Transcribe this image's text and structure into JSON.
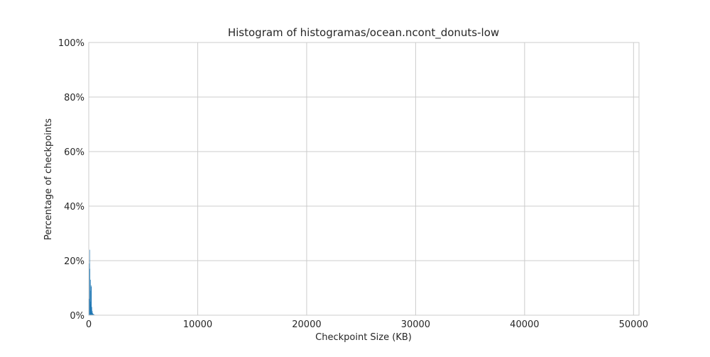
{
  "chart_data": {
    "type": "bar",
    "title": "Histogram of histogramas/ocean.ncont_donuts-low",
    "xlabel": "Checkpoint Size (KB)",
    "ylabel": "Percentage of checkpoints",
    "xlim": [
      0,
      50500
    ],
    "ylim": [
      0,
      100
    ],
    "x_ticks": [
      0,
      10000,
      20000,
      30000,
      40000,
      50000
    ],
    "x_tick_labels": [
      "0",
      "10000",
      "20000",
      "30000",
      "40000",
      "50000"
    ],
    "y_ticks": [
      0,
      20,
      40,
      60,
      80,
      100
    ],
    "y_tick_labels": [
      "0%",
      "20%",
      "40%",
      "60%",
      "80%",
      "100%"
    ],
    "grid": true,
    "bar_color": "#1f77b4",
    "bin_width_kb": 20,
    "bins": [
      {
        "x": 40,
        "value": 6
      },
      {
        "x": 60,
        "value": 19
      },
      {
        "x": 80,
        "value": 24
      },
      {
        "x": 100,
        "value": 17
      },
      {
        "x": 120,
        "value": 9
      },
      {
        "x": 140,
        "value": 5
      },
      {
        "x": 160,
        "value": 13
      },
      {
        "x": 180,
        "value": 4
      },
      {
        "x": 200,
        "value": 11
      },
      {
        "x": 220,
        "value": 3
      },
      {
        "x": 240,
        "value": 10.5
      },
      {
        "x": 260,
        "value": 2
      },
      {
        "x": 280,
        "value": 3
      },
      {
        "x": 300,
        "value": 1
      },
      {
        "x": 320,
        "value": 1.5
      },
      {
        "x": 340,
        "value": 0.8
      },
      {
        "x": 360,
        "value": 0.6
      },
      {
        "x": 400,
        "value": 0.5
      },
      {
        "x": 440,
        "value": 0.4
      },
      {
        "x": 500,
        "value": 0.3
      }
    ]
  }
}
